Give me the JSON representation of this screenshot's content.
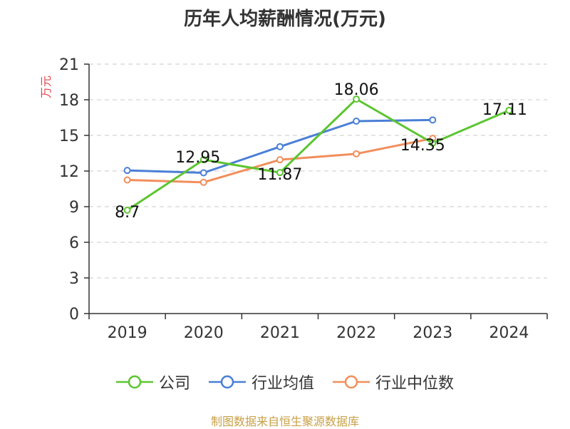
{
  "chart_data": {
    "type": "line",
    "title": "历年人均薪酬情况(万元)",
    "ylabel": "万元",
    "xlabel": "",
    "categories": [
      "2019",
      "2020",
      "2021",
      "2022",
      "2023",
      "2024"
    ],
    "ylim": [
      0,
      21
    ],
    "yticks": [
      0,
      3,
      6,
      9,
      12,
      15,
      18,
      21
    ],
    "grid": true,
    "legend_position": "bottom",
    "series": [
      {
        "name": "公司",
        "color": "#5cc531",
        "values": [
          8.7,
          12.95,
          11.87,
          18.06,
          14.35,
          17.11
        ],
        "labels": [
          "8.7",
          "12.95",
          "11.87",
          "18.06",
          "14.35",
          "17.11"
        ]
      },
      {
        "name": "行业均值",
        "color": "#4a7fd6",
        "values": [
          12.05,
          11.85,
          14.05,
          16.2,
          16.3,
          null
        ]
      },
      {
        "name": "行业中位数",
        "color": "#f28e5c",
        "values": [
          11.25,
          11.05,
          12.95,
          13.45,
          14.75,
          null
        ]
      }
    ]
  },
  "source": "制图数据来自恒生聚源数据库"
}
